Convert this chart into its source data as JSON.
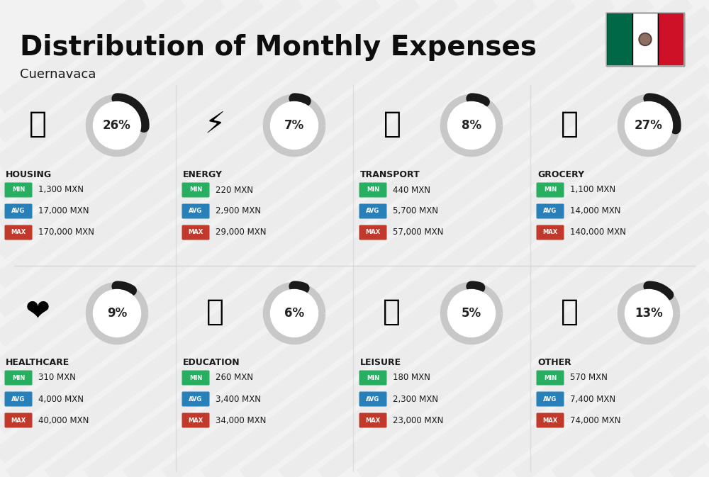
{
  "title": "Distribution of Monthly Expenses",
  "subtitle": "Cuernavaca",
  "background_color": "#f2f2f2",
  "categories": [
    {
      "name": "HOUSING",
      "percent": 26,
      "min": "1,300 MXN",
      "avg": "17,000 MXN",
      "max": "170,000 MXN",
      "row": 0,
      "col": 0,
      "emoji": "🏗"
    },
    {
      "name": "ENERGY",
      "percent": 7,
      "min": "220 MXN",
      "avg": "2,900 MXN",
      "max": "29,000 MXN",
      "row": 0,
      "col": 1,
      "emoji": "⚡"
    },
    {
      "name": "TRANSPORT",
      "percent": 8,
      "min": "440 MXN",
      "avg": "5,700 MXN",
      "max": "57,000 MXN",
      "row": 0,
      "col": 2,
      "emoji": "🚌"
    },
    {
      "name": "GROCERY",
      "percent": 27,
      "min": "1,100 MXN",
      "avg": "14,000 MXN",
      "max": "140,000 MXN",
      "row": 0,
      "col": 3,
      "emoji": "🛒"
    },
    {
      "name": "HEALTHCARE",
      "percent": 9,
      "min": "310 MXN",
      "avg": "4,000 MXN",
      "max": "40,000 MXN",
      "row": 1,
      "col": 0,
      "emoji": "❤️"
    },
    {
      "name": "EDUCATION",
      "percent": 6,
      "min": "260 MXN",
      "avg": "3,400 MXN",
      "max": "34,000 MXN",
      "row": 1,
      "col": 1,
      "emoji": "🎓"
    },
    {
      "name": "LEISURE",
      "percent": 5,
      "min": "180 MXN",
      "avg": "2,300 MXN",
      "max": "23,000 MXN",
      "row": 1,
      "col": 2,
      "emoji": "🛍️"
    },
    {
      "name": "OTHER",
      "percent": 13,
      "min": "570 MXN",
      "avg": "7,400 MXN",
      "max": "74,000 MXN",
      "row": 1,
      "col": 3,
      "emoji": "💰"
    }
  ],
  "color_min": "#27ae60",
  "color_avg": "#2980b9",
  "color_max": "#c0392b",
  "donut_track_color": "#c8c8c8",
  "donut_fill_color": "#1a1a1a",
  "donut_text_color": "#222222",
  "text_color": "#1a1a1a",
  "title_color": "#0d0d0d",
  "stripe_color": "#e8e8e8",
  "flag_green": "#006847",
  "flag_white": "#ffffff",
  "flag_red": "#ce1126",
  "title_fontsize": 28,
  "subtitle_fontsize": 13,
  "cat_name_fontsize": 9,
  "value_fontsize": 8,
  "badge_fontsize": 6,
  "donut_fontsize": 12,
  "icon_fontsize": 30
}
